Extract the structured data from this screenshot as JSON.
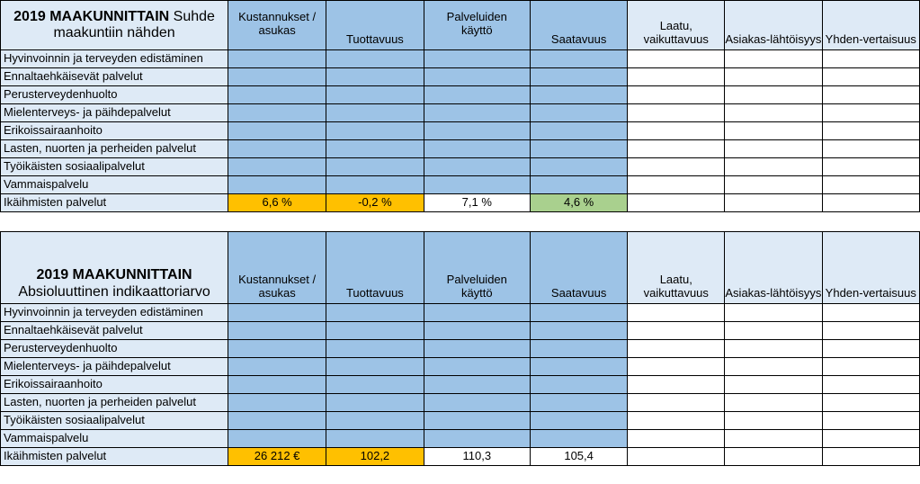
{
  "columns": [
    "Kustannukset / asukas",
    "Tuottavuus",
    "Palveluiden käyttö",
    "Saatavuus",
    "Laatu, vaikuttavuus",
    "Asiakas-lähtöisyys",
    "Yhden-vertaisuus"
  ],
  "rows": [
    "Hyvinvoinnin ja terveyden edistäminen",
    "Ennaltaehkäisevät palvelut",
    "Perusterveydenhuolto",
    "Mielenterveys- ja päihdepalvelut",
    "Erikoissairaanhoito",
    "Lasten, nuorten ja perheiden palvelut",
    "Työikäisten sosiaalipalvelut",
    "Vammaispalvelu",
    "Ikäihmisten palvelut"
  ],
  "table1": {
    "title_bold": "2019 MAAKUNNITTAIN",
    "title_rest": "Suhde maakuntiin nähden",
    "last_row_values": [
      "6,6 %",
      "-0,2 %",
      "7,1 %",
      "4,6 %"
    ]
  },
  "table2": {
    "title_bold": "2019 MAAKUNNITTAIN",
    "title_rest": "Absioluuttinen indikaattoriarvo",
    "last_row_values": [
      "26 212 €",
      "102,2",
      "110,3",
      "105,4"
    ]
  },
  "colors": {
    "label_bg": "#deeaf6",
    "blue_fill": "#9dc3e6",
    "orange_highlight": "#ffc000",
    "green_highlight": "#a9d08e"
  }
}
